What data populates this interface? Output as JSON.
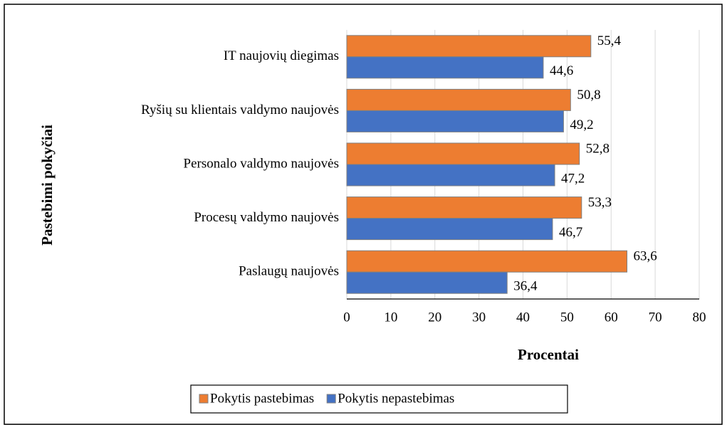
{
  "chart_data": {
    "type": "barh",
    "xlabel": "Procentai",
    "ylabel": "Pastebimi pokyčiai",
    "categories": [
      "IT naujovių diegimas",
      "Ryšių su klientais valdymo naujovės",
      "Personalo valdymo naujovės",
      "Procesų valdymo naujovės",
      "Paslaugų naujovės"
    ],
    "series": [
      {
        "name": "Pokytis pastebimas",
        "color": "#ed7d31",
        "values": [
          55.4,
          50.8,
          52.8,
          53.3,
          63.6
        ],
        "value_labels": [
          "55,4",
          "50,8",
          "52,8",
          "53,3",
          "63,6"
        ]
      },
      {
        "name": "Pokytis nepastebimas",
        "color": "#4472c4",
        "values": [
          44.6,
          49.2,
          47.2,
          46.7,
          36.4
        ],
        "value_labels": [
          "44,6",
          "49,2",
          "47,2",
          "46,7",
          "36,4"
        ]
      }
    ],
    "xlim": [
      0,
      80
    ],
    "xticks": [
      0,
      10,
      20,
      30,
      40,
      50,
      60,
      70,
      80
    ],
    "grid": true,
    "legend": "bottom"
  }
}
